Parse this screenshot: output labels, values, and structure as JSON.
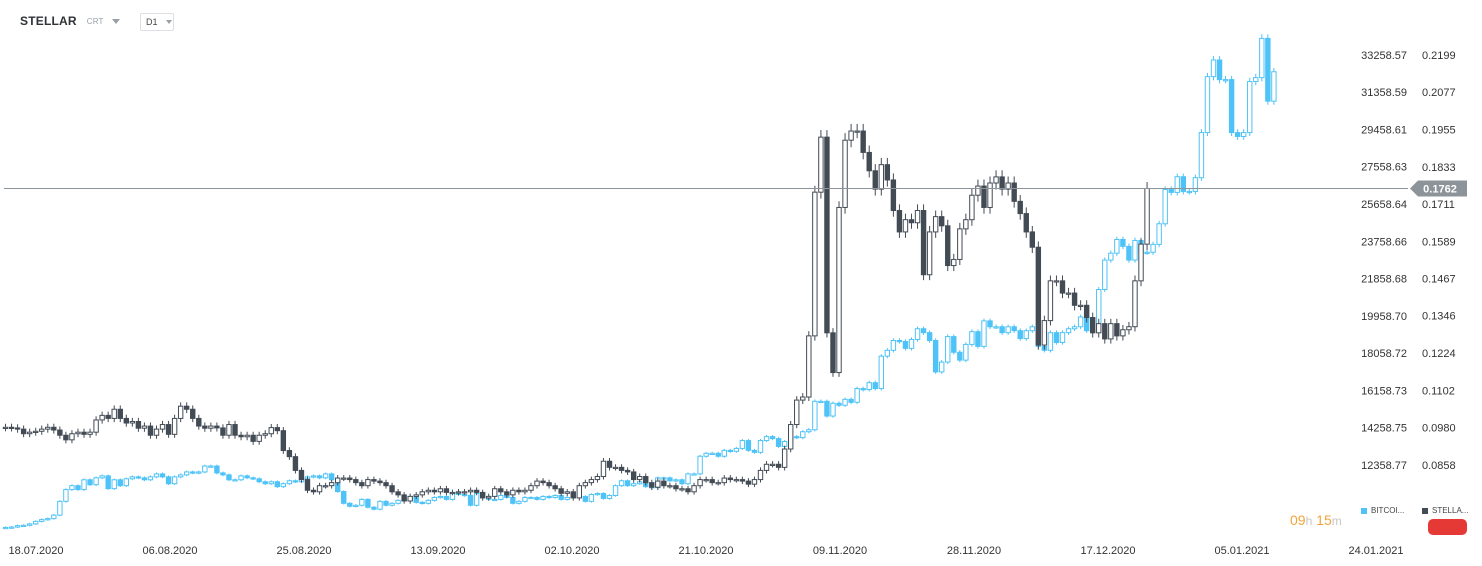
{
  "header": {
    "symbol": "STELLAR",
    "symbol_sub": "CRT",
    "timeframe": "D1"
  },
  "colors": {
    "bitcoin": "#4fc3f7",
    "stellar_down": "#434b55",
    "stellar_up": "#ffffff",
    "price_line": "#8d9499",
    "badge": "#8d9499"
  },
  "legend": [
    {
      "name": "BITCOI...",
      "color": "#4fc3f7"
    },
    {
      "name": "STELLA...",
      "color": "#434b55"
    }
  ],
  "timer": {
    "hours": "09",
    "hours_unit": "h",
    "minutes": "15",
    "minutes_unit": "m"
  },
  "current_price": "0.1762",
  "chart_data": {
    "type": "candlestick",
    "x_labels": [
      "18.07.2020",
      "06.08.2020",
      "25.08.2020",
      "13.09.2020",
      "02.10.2020",
      "21.10.2020",
      "09.11.2020",
      "28.11.2020",
      "17.12.2020",
      "05.01.2021",
      "24.01.2021"
    ],
    "y_left_ticks": [
      "33258.57",
      "31358.59",
      "29458.61",
      "27558.63",
      "25658.64",
      "23758.66",
      "21858.68",
      "19958.70",
      "18058.72",
      "16158.73",
      "14258.75",
      "12358.77"
    ],
    "y_right_ticks": [
      "0.2199",
      "0.2077",
      "0.1955",
      "0.1833",
      "0.1711",
      "0.1589",
      "0.1467",
      "0.1346",
      "0.1224",
      "0.1102",
      "0.0980",
      "0.0858"
    ],
    "series": [
      {
        "name": "BITCOIN",
        "close": [
          9170,
          9190,
          9260,
          9280,
          9350,
          9480,
          9570,
          9620,
          9800,
          10500,
          11100,
          11300,
          11100,
          11600,
          11350,
          11700,
          11800,
          11150,
          11600,
          11300,
          11650,
          11750,
          11700,
          11600,
          11750,
          11900,
          11750,
          11400,
          11750,
          11850,
          12000,
          11950,
          12000,
          12300,
          12300,
          11950,
          11850,
          11600,
          11600,
          11800,
          11700,
          11650,
          11500,
          11400,
          11500,
          11250,
          11400,
          11550,
          11500,
          11650,
          11750,
          11800,
          11700,
          11900,
          11600,
          11000,
          10400,
          10250,
          10300,
          10600,
          10200,
          10100,
          10500,
          10300,
          10400,
          10550,
          10650,
          10750,
          10450,
          10400,
          10550,
          10700,
          10750,
          10600,
          10950,
          10850,
          10800,
          10300,
          10900,
          10750,
          10600,
          10600,
          10800,
          10700,
          10400,
          10500,
          10700,
          10700,
          10600,
          10750,
          10700,
          10800,
          10600,
          10700,
          10850,
          10750,
          10500,
          10850,
          10900,
          10650,
          10800,
          11300,
          11550,
          11300,
          11400,
          11500,
          11250,
          11200,
          11700,
          11700,
          11550,
          11600,
          11400,
          11900,
          11900,
          12800,
          12950,
          12950,
          12800,
          13100,
          13050,
          13200,
          13600,
          13100,
          13000,
          13600,
          13800,
          13700,
          13300,
          13550,
          13800,
          13750,
          14050,
          14150,
          15600,
          15600,
          14850,
          15500,
          15400,
          15700,
          15550,
          16250,
          16200,
          16550,
          16250,
          17900,
          18200,
          18700,
          18650,
          18300,
          18750,
          19300,
          19100,
          18700,
          17100,
          17600,
          18900,
          18100,
          17700,
          18500,
          19150,
          18400,
          19700,
          19400,
          19400,
          19100,
          19400,
          19200,
          18800,
          19200,
          19400,
          18400,
          18200,
          19100,
          18600,
          19100,
          19300,
          19400,
          19900,
          19200,
          19200,
          21300,
          22800,
          23150,
          23850,
          23500,
          22800,
          23800,
          23200,
          23200,
          23600,
          24650,
          26400,
          26250,
          27050,
          26300,
          26300,
          27000,
          29300,
          32150,
          33000,
          32000,
          32000,
          29300,
          29100,
          29300,
          31900,
          32100,
          34100,
          30900,
          32400
        ],
        "draw": "filled"
      },
      {
        "name": "STELLAR",
        "close": [
          0.0981,
          0.0979,
          0.0975,
          0.096,
          0.0965,
          0.0968,
          0.0975,
          0.0981,
          0.0972,
          0.0955,
          0.094,
          0.096,
          0.0965,
          0.0958,
          0.0965,
          0.1005,
          0.102,
          0.101,
          0.104,
          0.101,
          0.0995,
          0.1,
          0.0978,
          0.0985,
          0.0955,
          0.0975,
          0.099,
          0.0958,
          0.101,
          0.105,
          0.104,
          0.101,
          0.0985,
          0.0978,
          0.0985,
          0.0979,
          0.0955,
          0.099,
          0.0955,
          0.095,
          0.0955,
          0.0935,
          0.0955,
          0.096,
          0.098,
          0.097,
          0.0905,
          0.0885,
          0.084,
          0.081,
          0.0775,
          0.077,
          0.079,
          0.079,
          0.08,
          0.0815,
          0.0815,
          0.081,
          0.08,
          0.079,
          0.081,
          0.0805,
          0.08,
          0.079,
          0.077,
          0.076,
          0.074,
          0.0755,
          0.076,
          0.077,
          0.0775,
          0.077,
          0.078,
          0.0768,
          0.0768,
          0.077,
          0.077,
          0.0775,
          0.0768,
          0.075,
          0.0755,
          0.078,
          0.077,
          0.076,
          0.0775,
          0.077,
          0.0775,
          0.079,
          0.0805,
          0.08,
          0.079,
          0.078,
          0.0765,
          0.077,
          0.075,
          0.079,
          0.08,
          0.081,
          0.082,
          0.087,
          0.085,
          0.085,
          0.084,
          0.0835,
          0.081,
          0.082,
          0.08,
          0.0785,
          0.0805,
          0.079,
          0.079,
          0.078,
          0.078,
          0.077,
          0.079,
          0.081,
          0.081,
          0.08,
          0.08,
          0.0815,
          0.081,
          0.081,
          0.0805,
          0.0795,
          0.081,
          0.084,
          0.086,
          0.086,
          0.085,
          0.091,
          0.099,
          0.107,
          0.108,
          0.128,
          0.175,
          0.193,
          0.129,
          0.116,
          0.17,
          0.192,
          0.195,
          0.195,
          0.188,
          0.182,
          0.176,
          0.184,
          0.179,
          0.169,
          0.162,
          0.166,
          0.165,
          0.169,
          0.148,
          0.162,
          0.167,
          0.164,
          0.151,
          0.153,
          0.163,
          0.166,
          0.174,
          0.177,
          0.17,
          0.178,
          0.18,
          0.176,
          0.178,
          0.172,
          0.168,
          0.162,
          0.157,
          0.125,
          0.133,
          0.146,
          0.146,
          0.142,
          0.142,
          0.138,
          0.138,
          0.134,
          0.129,
          0.132,
          0.127,
          0.132,
          0.128,
          0.13,
          0.131,
          0.146,
          0.158,
          0.1762
        ],
        "draw": "hollow-up"
      }
    ]
  }
}
